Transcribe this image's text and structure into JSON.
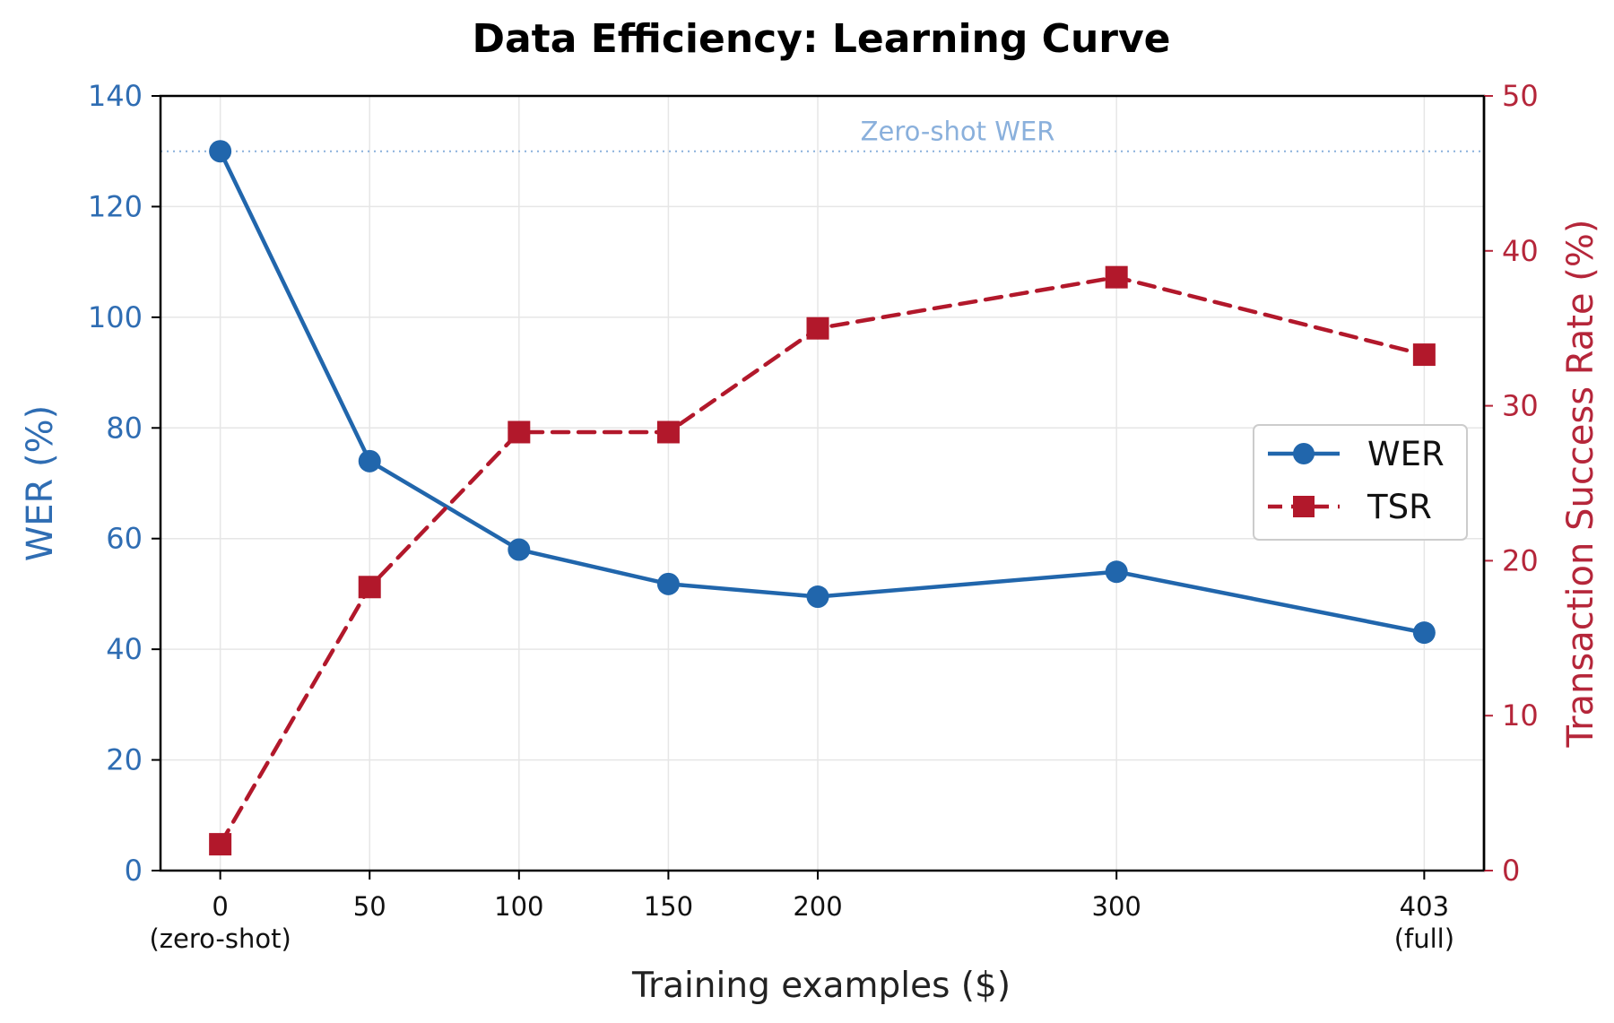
{
  "chart_data": {
    "type": "line",
    "title": "Data Efficiency: Learning Curve",
    "xlabel": "Training examples ($)",
    "x": [
      0,
      50,
      100,
      150,
      200,
      300,
      403
    ],
    "x_tick_labels": [
      "0",
      "50",
      "100",
      "150",
      "200",
      "300",
      "403"
    ],
    "x_tick_sublabels": [
      "(zero-shot)",
      "",
      "",
      "",
      "",
      "",
      "(full)"
    ],
    "xlim": [
      -20,
      423
    ],
    "left_axis": {
      "ylabel": "WER (%)",
      "ylim": [
        0,
        140
      ],
      "ticks": [
        "0",
        "20",
        "40",
        "60",
        "80",
        "100",
        "120",
        "140"
      ],
      "color": "#2f6db3"
    },
    "right_axis": {
      "ylabel": "Transaction Success Rate (%)",
      "ylim": [
        0,
        50
      ],
      "ticks": [
        "0",
        "10",
        "20",
        "30",
        "40",
        "50"
      ],
      "color": "#b5263a"
    },
    "series": [
      {
        "name": "WER",
        "axis": "left",
        "color": "#2166ac",
        "line_style": "solid",
        "marker": "circle",
        "values": [
          130,
          74,
          58,
          51.8,
          49.5,
          54,
          43
        ]
      },
      {
        "name": "TSR",
        "axis": "right",
        "color": "#b2182b",
        "line_style": "dashed",
        "marker": "square",
        "values": [
          1.7,
          18.3,
          28.3,
          28.3,
          35,
          38.3,
          33.3
        ]
      }
    ],
    "reference_line": {
      "label": "Zero-shot WER",
      "value": 130,
      "axis": "left",
      "color": "#8ab0dc"
    },
    "grid": true,
    "legend_position": "center-right"
  }
}
